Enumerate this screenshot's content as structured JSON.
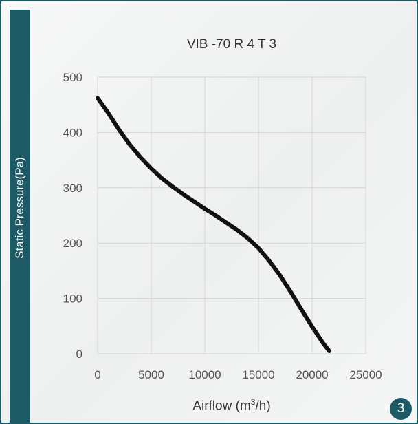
{
  "page": {
    "number": "3"
  },
  "colors": {
    "accent": "#1e5a66",
    "grid": "#d4d4d4",
    "curve": "#111111",
    "background": "#f2f3f3"
  },
  "chart_data": {
    "type": "line",
    "title": "VIB  -70 R 4 T 3",
    "xlabel": "Airflow (m3/h)",
    "xlabel_parts": {
      "main": "Airflow (m",
      "sup": "3",
      "end": "/h)"
    },
    "ylabel": "Static Pressure(Pa)",
    "xlim": [
      0,
      25000
    ],
    "ylim": [
      0,
      500
    ],
    "x_ticks": [
      "0",
      "5000",
      "10000",
      "15000",
      "20000",
      "25000"
    ],
    "y_ticks": [
      "0",
      "100",
      "200",
      "300",
      "400",
      "500"
    ],
    "grid": true,
    "legend": "none",
    "series": [
      {
        "x": [
          0,
          1000,
          2000,
          3000,
          4000,
          5000,
          6000,
          7000,
          8000,
          9000,
          10000,
          11000,
          12000,
          13000,
          14000,
          15000,
          16000,
          17000,
          18000,
          19000,
          20000,
          21000,
          21600
        ],
        "y": [
          462,
          435,
          405,
          378,
          355,
          335,
          317,
          302,
          288,
          275,
          262,
          250,
          237,
          224,
          209,
          191,
          168,
          142,
          112,
          80,
          49,
          20,
          5
        ]
      }
    ]
  }
}
